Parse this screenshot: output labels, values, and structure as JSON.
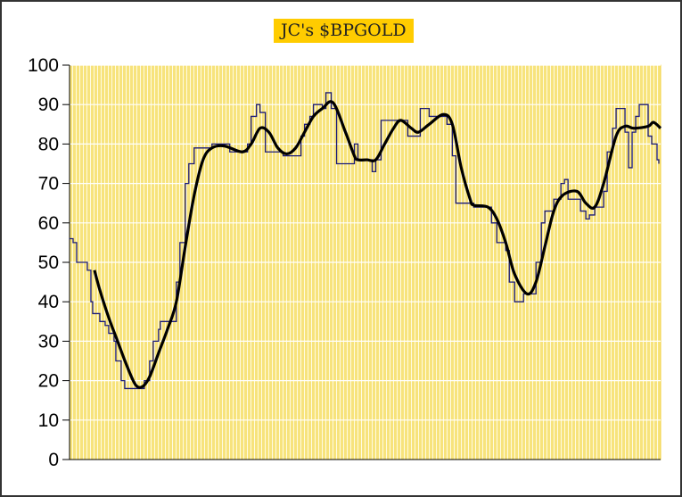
{
  "chart_data": {
    "type": "line",
    "title": "JC's $BPGOLD",
    "xlabel": "",
    "ylabel": "",
    "ylim": [
      0,
      100
    ],
    "xlim": [
      0,
      332
    ],
    "yticks": [
      "0",
      "10",
      "20",
      "30",
      "40",
      "50",
      "60",
      "70",
      "80",
      "90",
      "100"
    ],
    "grid": true,
    "legend": "none",
    "colors": {
      "plot_bg": "#f7e37c",
      "stripe": "#fffbe0",
      "title_bg": "#ffcc00",
      "series_step": "#1a1a7a",
      "series_smooth": "#000000"
    },
    "series": [
      {
        "points": [
          [
            0,
            56
          ],
          [
            2,
            55
          ],
          [
            4,
            50
          ],
          [
            8,
            50
          ],
          [
            10,
            48
          ],
          [
            12,
            40
          ],
          [
            13,
            37
          ],
          [
            16,
            37
          ],
          [
            17,
            35
          ],
          [
            20,
            34
          ],
          [
            22,
            32
          ],
          [
            25,
            30
          ],
          [
            26,
            25
          ],
          [
            29,
            20
          ],
          [
            31,
            18
          ],
          [
            40,
            18
          ],
          [
            42,
            20
          ],
          [
            45,
            25
          ],
          [
            47,
            30
          ],
          [
            50,
            33
          ],
          [
            51,
            35
          ],
          [
            57,
            35
          ],
          [
            60,
            45
          ],
          [
            62,
            55
          ],
          [
            65,
            70
          ],
          [
            67,
            75
          ],
          [
            70,
            79
          ],
          [
            75,
            79
          ],
          [
            80,
            80
          ],
          [
            87,
            80
          ],
          [
            90,
            78
          ],
          [
            97,
            78
          ],
          [
            100,
            80
          ],
          [
            102,
            87
          ],
          [
            105,
            90
          ],
          [
            107,
            88
          ],
          [
            110,
            78
          ],
          [
            117,
            78
          ],
          [
            120,
            77
          ],
          [
            125,
            77
          ],
          [
            130,
            82
          ],
          [
            132,
            85
          ],
          [
            135,
            87
          ],
          [
            137,
            90
          ],
          [
            142,
            89
          ],
          [
            144,
            93
          ],
          [
            147,
            89
          ],
          [
            150,
            75
          ],
          [
            157,
            75
          ],
          [
            160,
            80
          ],
          [
            162,
            76
          ],
          [
            167,
            76
          ],
          [
            170,
            73
          ],
          [
            172,
            76
          ],
          [
            175,
            86
          ],
          [
            187,
            86
          ],
          [
            190,
            82
          ],
          [
            195,
            82
          ],
          [
            197,
            89
          ],
          [
            202,
            87
          ],
          [
            207,
            87
          ],
          [
            212,
            85
          ],
          [
            215,
            77
          ],
          [
            217,
            65
          ],
          [
            225,
            65
          ],
          [
            227,
            64
          ],
          [
            235,
            64
          ],
          [
            237,
            60
          ],
          [
            240,
            55
          ],
          [
            245,
            53
          ],
          [
            247,
            45
          ],
          [
            250,
            40
          ],
          [
            253,
            40
          ],
          [
            255,
            42
          ],
          [
            261,
            42
          ],
          [
            262,
            50
          ],
          [
            265,
            60
          ],
          [
            267,
            63
          ],
          [
            272,
            66
          ],
          [
            276,
            70
          ],
          [
            278,
            71
          ],
          [
            280,
            66
          ],
          [
            285,
            66
          ],
          [
            287,
            63
          ],
          [
            290,
            61
          ],
          [
            292,
            62
          ],
          [
            295,
            64
          ],
          [
            300,
            68
          ],
          [
            302,
            78
          ],
          [
            305,
            84
          ],
          [
            307,
            89
          ],
          [
            311,
            89
          ],
          [
            312,
            83
          ],
          [
            314,
            74
          ],
          [
            315,
            74
          ],
          [
            316,
            83
          ],
          [
            318,
            87
          ],
          [
            320,
            90
          ],
          [
            322,
            90
          ],
          [
            325,
            82
          ],
          [
            327,
            80
          ],
          [
            330,
            76
          ],
          [
            331,
            75
          ]
        ]
      },
      {
        "points": [
          [
            14,
            48
          ],
          [
            17,
            43
          ],
          [
            22,
            36
          ],
          [
            27,
            30
          ],
          [
            32,
            24
          ],
          [
            37,
            19
          ],
          [
            41,
            18.5
          ],
          [
            45,
            21
          ],
          [
            50,
            27
          ],
          [
            55,
            33
          ],
          [
            60,
            40
          ],
          [
            65,
            54
          ],
          [
            70,
            67
          ],
          [
            75,
            76
          ],
          [
            80,
            79
          ],
          [
            87,
            79.5
          ],
          [
            97,
            78
          ],
          [
            102,
            80
          ],
          [
            107,
            84
          ],
          [
            112,
            83
          ],
          [
            117,
            79
          ],
          [
            122,
            77.5
          ],
          [
            127,
            79
          ],
          [
            132,
            83
          ],
          [
            137,
            87
          ],
          [
            142,
            89
          ],
          [
            148,
            90.5
          ],
          [
            155,
            83
          ],
          [
            160,
            77
          ],
          [
            162,
            76
          ],
          [
            167,
            76
          ],
          [
            172,
            76
          ],
          [
            177,
            80
          ],
          [
            182,
            84
          ],
          [
            186,
            86
          ],
          [
            192,
            84
          ],
          [
            196,
            83
          ],
          [
            202,
            85
          ],
          [
            210,
            87.5
          ],
          [
            215,
            85
          ],
          [
            220,
            74
          ],
          [
            225,
            66
          ],
          [
            227,
            64.5
          ],
          [
            235,
            64
          ],
          [
            240,
            61
          ],
          [
            245,
            55
          ],
          [
            250,
            47
          ],
          [
            257,
            42
          ],
          [
            262,
            45
          ],
          [
            267,
            54
          ],
          [
            272,
            63
          ],
          [
            277,
            67
          ],
          [
            285,
            68
          ],
          [
            290,
            65
          ],
          [
            295,
            64
          ],
          [
            300,
            70
          ],
          [
            307,
            82
          ],
          [
            312,
            84.5
          ],
          [
            317,
            84
          ],
          [
            325,
            84.5
          ],
          [
            328,
            85.5
          ],
          [
            332,
            84
          ]
        ]
      }
    ]
  }
}
